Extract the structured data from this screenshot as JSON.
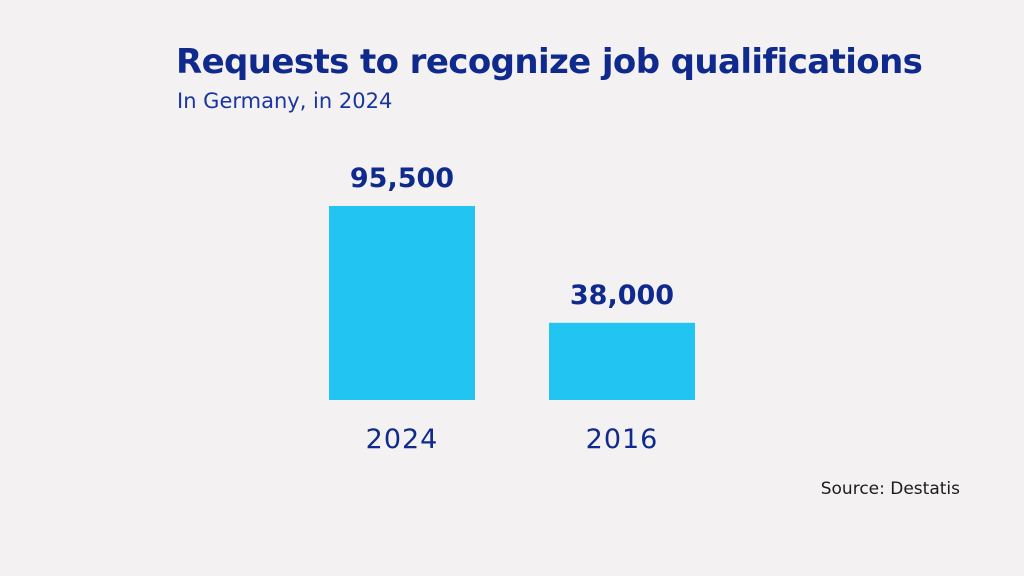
{
  "chart_data": {
    "type": "bar",
    "title": "Requests to recognize job qualifications",
    "subtitle": "In Germany, in 2024",
    "categories": [
      "2024",
      "2016"
    ],
    "values": [
      95500,
      38000
    ],
    "value_labels": [
      "95,500",
      "38,000"
    ],
    "xlabel": "",
    "ylabel": "",
    "ylim": [
      0,
      95500
    ],
    "grid": false,
    "bar_color": "#22c4f2",
    "text_color": "#0f2a8c"
  },
  "source": "Source: Destatis"
}
